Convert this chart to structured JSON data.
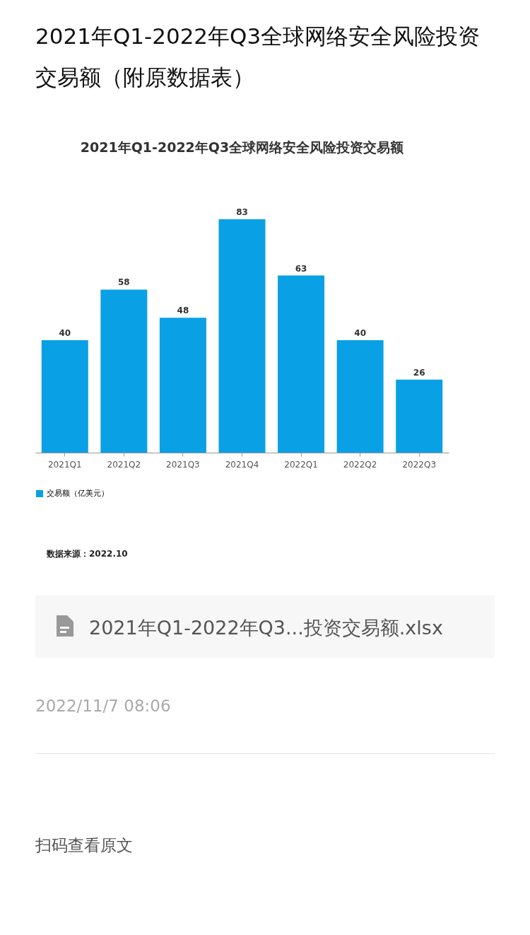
{
  "chart_data": {
    "type": "bar",
    "title": "2021年Q1-2022年Q3全球网络安全风险投资交易额（附原数据表）",
    "subtitle": "2021年Q1-2022年Q3全球网络安全风险投资交易额",
    "categories": [
      "2021Q1",
      "2021Q2",
      "2021Q3",
      "2021Q4",
      "2022Q1",
      "2022Q2",
      "2022Q3"
    ],
    "series": [
      {
        "name": "交易额（亿美元）",
        "color": "#0aa0e6",
        "values": [
          40,
          58,
          48,
          83,
          63,
          40,
          26
        ]
      }
    ],
    "data_labels": true,
    "legend": "bottom",
    "grid": false,
    "annotations": [
      "数据来源：2022.10",
      "2021年Q1-2022年Q3...投资交易额.xlsx",
      "2022/11/7 08:06",
      "扫码查看原文"
    ]
  }
}
